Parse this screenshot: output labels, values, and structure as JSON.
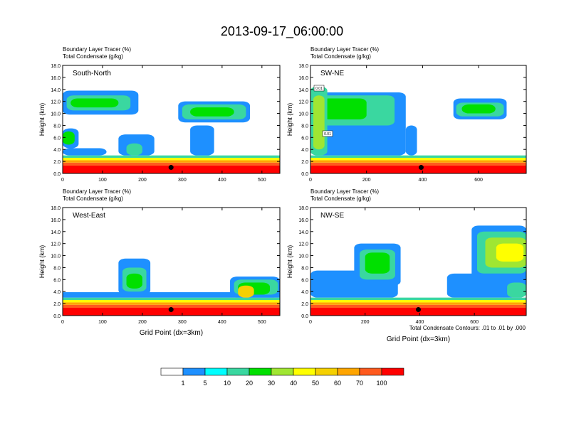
{
  "title": "2013-09-17_06:00:00",
  "footnote": "Total Condensate Contours: .01 to .01 by .000",
  "colors": {
    "levels": [
      "#ffffff",
      "#1e90ff",
      "#00ffff",
      "#3ad7a0",
      "#00e000",
      "#a0e632",
      "#ffff00",
      "#f5d000",
      "#ffa500",
      "#ff5a1e",
      "#ff0000"
    ],
    "contour": "#000000",
    "marker": "#000000"
  },
  "colorbar_labels": [
    "1",
    "5",
    "10",
    "20",
    "30",
    "40",
    "50",
    "60",
    "70",
    "100"
  ],
  "chart_data": [
    {
      "type": "heatmap",
      "panel": "top-left",
      "label": "South-North",
      "title_lines": [
        "Boundary Layer Tracer   (%)",
        "Total Condensate   (g/kg)"
      ],
      "xlabel": "",
      "ylabel": "Height (km)",
      "xlim": [
        0,
        545
      ],
      "ylim": [
        0,
        18
      ],
      "xticks": [
        0,
        100,
        200,
        300,
        400,
        500
      ],
      "yticks": [
        0,
        2,
        4,
        6,
        8,
        10,
        12,
        14,
        16,
        18
      ],
      "ytick_labels": [
        "0.0",
        "2.0",
        "4.0",
        "6.0",
        "8.0",
        "10.0",
        "12.0",
        "14.0",
        "16.0",
        "18.0"
      ],
      "marker": {
        "x": 272,
        "y": 1.0
      },
      "blobs": [
        {
          "x": [
            0,
            545
          ],
          "y": [
            0,
            1.3
          ],
          "level": 10
        },
        {
          "x": [
            0,
            545
          ],
          "y": [
            1.3,
            1.8
          ],
          "level": 9
        },
        {
          "x": [
            0,
            545
          ],
          "y": [
            1.8,
            2.2
          ],
          "level": 8
        },
        {
          "x": [
            0,
            545
          ],
          "y": [
            2.2,
            2.6
          ],
          "level": 6
        },
        {
          "x": [
            0,
            545
          ],
          "y": [
            2.6,
            3.0
          ],
          "level": 3
        },
        {
          "x": [
            0,
            110
          ],
          "y": [
            3.0,
            4.2
          ],
          "level": 1
        },
        {
          "x": [
            0,
            40
          ],
          "y": [
            4.2,
            7.5
          ],
          "level": 1
        },
        {
          "x": [
            0,
            30
          ],
          "y": [
            4.8,
            7.0
          ],
          "level": 4
        },
        {
          "x": [
            0,
            190
          ],
          "y": [
            9.8,
            13.8
          ],
          "level": 1
        },
        {
          "x": [
            10,
            170
          ],
          "y": [
            10.5,
            13.0
          ],
          "level": 3
        },
        {
          "x": [
            20,
            140
          ],
          "y": [
            11.0,
            12.5
          ],
          "level": 4
        },
        {
          "x": [
            290,
            470
          ],
          "y": [
            8.5,
            12.0
          ],
          "level": 1
        },
        {
          "x": [
            300,
            460
          ],
          "y": [
            9.0,
            11.5
          ],
          "level": 3
        },
        {
          "x": [
            320,
            430
          ],
          "y": [
            9.5,
            11.0
          ],
          "level": 4
        },
        {
          "x": [
            320,
            380
          ],
          "y": [
            3.0,
            8.0
          ],
          "level": 1
        },
        {
          "x": [
            140,
            230
          ],
          "y": [
            3.0,
            6.5
          ],
          "level": 1
        },
        {
          "x": [
            160,
            200
          ],
          "y": [
            3.0,
            5.0
          ],
          "level": 3
        }
      ]
    },
    {
      "type": "heatmap",
      "panel": "top-right",
      "label": "SW-NE",
      "title_lines": [
        "Boundary Layer Tracer   (%)",
        "Total Condensate   (g/kg)"
      ],
      "xlabel": "",
      "ylabel": "Height (km)",
      "xlim": [
        0,
        770
      ],
      "ylim": [
        0,
        18
      ],
      "xticks": [
        0,
        200,
        400,
        600
      ],
      "yticks": [
        0,
        2,
        4,
        6,
        8,
        10,
        12,
        14,
        16,
        18
      ],
      "ytick_labels": [
        "0.0",
        "2.0",
        "4.0",
        "6.0",
        "8.0",
        "10.0",
        "12.0",
        "14.0",
        "16.0",
        "18.0"
      ],
      "marker": {
        "x": 395,
        "y": 1.0
      },
      "contour_labels": [
        "0.01",
        "0.01"
      ],
      "blobs": [
        {
          "x": [
            0,
            770
          ],
          "y": [
            0,
            1.3
          ],
          "level": 10
        },
        {
          "x": [
            0,
            770
          ],
          "y": [
            1.3,
            1.8
          ],
          "level": 9
        },
        {
          "x": [
            0,
            770
          ],
          "y": [
            1.8,
            2.2
          ],
          "level": 8
        },
        {
          "x": [
            0,
            770
          ],
          "y": [
            2.2,
            2.6
          ],
          "level": 6
        },
        {
          "x": [
            0,
            770
          ],
          "y": [
            2.6,
            3.0
          ],
          "level": 3
        },
        {
          "x": [
            0,
            340
          ],
          "y": [
            3.0,
            13.5
          ],
          "level": 1
        },
        {
          "x": [
            20,
            300
          ],
          "y": [
            8.0,
            13.0
          ],
          "level": 3
        },
        {
          "x": [
            40,
            200
          ],
          "y": [
            9.0,
            12.5
          ],
          "level": 4
        },
        {
          "x": [
            0,
            60
          ],
          "y": [
            3.0,
            14.5
          ],
          "level": 3
        },
        {
          "x": [
            10,
            50
          ],
          "y": [
            4.0,
            13.0
          ],
          "level": 5
        },
        {
          "x": [
            510,
            700
          ],
          "y": [
            9.0,
            12.5
          ],
          "level": 1
        },
        {
          "x": [
            520,
            690
          ],
          "y": [
            9.5,
            11.8
          ],
          "level": 3
        },
        {
          "x": [
            540,
            660
          ],
          "y": [
            10.0,
            11.5
          ],
          "level": 4
        },
        {
          "x": [
            340,
            380
          ],
          "y": [
            3.0,
            8.0
          ],
          "level": 1
        }
      ]
    },
    {
      "type": "heatmap",
      "panel": "bottom-left",
      "label": "West-East",
      "title_lines": [
        "Boundary Layer Tracer   (%)",
        "Total Condensate   (g/kg)"
      ],
      "xlabel": "Grid Point (dx=3km)",
      "ylabel": "Height (km)",
      "xlim": [
        0,
        545
      ],
      "ylim": [
        0,
        18
      ],
      "xticks": [
        0,
        100,
        200,
        300,
        400,
        500
      ],
      "yticks": [
        0,
        2,
        4,
        6,
        8,
        10,
        12,
        14,
        16,
        18
      ],
      "ytick_labels": [
        "0.0",
        "2.0",
        "4.0",
        "6.0",
        "8.0",
        "10.0",
        "12.0",
        "14.0",
        "16.0",
        "18.0"
      ],
      "marker": {
        "x": 272,
        "y": 1.0
      },
      "blobs": [
        {
          "x": [
            0,
            545
          ],
          "y": [
            0,
            1.3
          ],
          "level": 10
        },
        {
          "x": [
            0,
            545
          ],
          "y": [
            1.3,
            1.8
          ],
          "level": 9
        },
        {
          "x": [
            0,
            545
          ],
          "y": [
            1.8,
            2.2
          ],
          "level": 8
        },
        {
          "x": [
            0,
            545
          ],
          "y": [
            2.2,
            2.6
          ],
          "level": 6
        },
        {
          "x": [
            0,
            545
          ],
          "y": [
            2.6,
            3.0
          ],
          "level": 3
        },
        {
          "x": [
            0,
            545
          ],
          "y": [
            3.0,
            3.9
          ],
          "level": 1
        },
        {
          "x": [
            140,
            220
          ],
          "y": [
            3.5,
            9.5
          ],
          "level": 1
        },
        {
          "x": [
            150,
            210
          ],
          "y": [
            4.0,
            8.0
          ],
          "level": 3
        },
        {
          "x": [
            160,
            200
          ],
          "y": [
            4.5,
            7.0
          ],
          "level": 4
        },
        {
          "x": [
            420,
            545
          ],
          "y": [
            3.0,
            6.5
          ],
          "level": 1
        },
        {
          "x": [
            430,
            540
          ],
          "y": [
            3.5,
            6.0
          ],
          "level": 3
        },
        {
          "x": [
            440,
            520
          ],
          "y": [
            3.5,
            5.5
          ],
          "level": 4
        },
        {
          "x": [
            440,
            480
          ],
          "y": [
            3.0,
            5.0
          ],
          "level": 7
        }
      ]
    },
    {
      "type": "heatmap",
      "panel": "bottom-right",
      "label": "NW-SE",
      "title_lines": [
        "Boundary Layer Tracer   (%)",
        "Total Condensate   (g/kg)"
      ],
      "xlabel": "Grid Point (dx=3km)",
      "ylabel": "Height (km)",
      "xlim": [
        0,
        790
      ],
      "ylim": [
        0,
        18
      ],
      "xticks": [
        0,
        200,
        400,
        600
      ],
      "yticks": [
        0,
        2,
        4,
        6,
        8,
        10,
        12,
        14,
        16,
        18
      ],
      "ytick_labels": [
        "0.0",
        "2.0",
        "4.0",
        "6.0",
        "8.0",
        "10.0",
        "12.0",
        "14.0",
        "16.0",
        "18.0"
      ],
      "marker": {
        "x": 395,
        "y": 1.0
      },
      "blobs": [
        {
          "x": [
            0,
            790
          ],
          "y": [
            0,
            1.3
          ],
          "level": 10
        },
        {
          "x": [
            0,
            790
          ],
          "y": [
            1.3,
            1.8
          ],
          "level": 9
        },
        {
          "x": [
            0,
            790
          ],
          "y": [
            1.8,
            2.2
          ],
          "level": 8
        },
        {
          "x": [
            0,
            790
          ],
          "y": [
            2.2,
            2.6
          ],
          "level": 6
        },
        {
          "x": [
            0,
            790
          ],
          "y": [
            2.6,
            3.0
          ],
          "level": 3
        },
        {
          "x": [
            0,
            320
          ],
          "y": [
            3.0,
            7.5
          ],
          "level": 1
        },
        {
          "x": [
            160,
            330
          ],
          "y": [
            5.0,
            12.0
          ],
          "level": 1
        },
        {
          "x": [
            180,
            310
          ],
          "y": [
            6.0,
            11.0
          ],
          "level": 3
        },
        {
          "x": [
            200,
            290
          ],
          "y": [
            7.0,
            10.5
          ],
          "level": 4
        },
        {
          "x": [
            590,
            790
          ],
          "y": [
            6.0,
            15.0
          ],
          "level": 1
        },
        {
          "x": [
            610,
            790
          ],
          "y": [
            7.0,
            14.0
          ],
          "level": 3
        },
        {
          "x": [
            640,
            790
          ],
          "y": [
            8.0,
            13.0
          ],
          "level": 5
        },
        {
          "x": [
            680,
            780
          ],
          "y": [
            9.0,
            12.0
          ],
          "level": 6
        },
        {
          "x": [
            500,
            790
          ],
          "y": [
            3.0,
            7.0
          ],
          "level": 1
        },
        {
          "x": [
            720,
            790
          ],
          "y": [
            3.0,
            5.5
          ],
          "level": 3
        }
      ]
    }
  ]
}
